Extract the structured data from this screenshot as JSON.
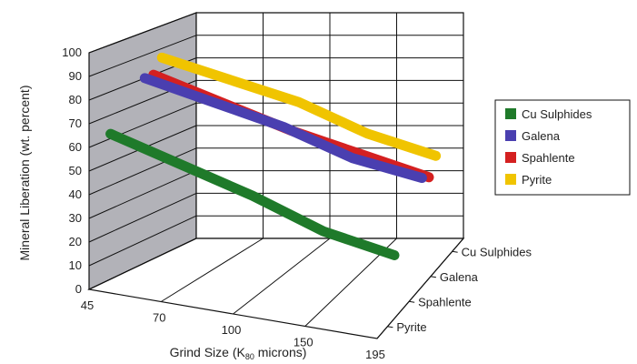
{
  "chart_data": {
    "type": "line",
    "chart_style": "3d-ribbon",
    "title": "",
    "ylabel": "Mineral Liberation (wt. percent)",
    "xlabel": "Grind Size (K80 microns)",
    "xlabel_parts": {
      "main": "Grind Size (K",
      "subscript": "80",
      "suffix": " microns)"
    },
    "categories": [
      "45",
      "70",
      "100",
      "150",
      "195"
    ],
    "ylim": [
      0,
      100
    ],
    "yticks": [
      "0",
      "10",
      "20",
      "30",
      "40",
      "50",
      "60",
      "70",
      "80",
      "90",
      "100"
    ],
    "depth_categories": [
      "Cu Sulphides",
      "Galena",
      "Spahlente",
      "Pyrite"
    ],
    "grid": true,
    "legend_position": "right",
    "series": [
      {
        "name": "Cu Sulphides",
        "color": "#1f7a2a",
        "values": [
          62,
          53,
          44,
          33,
          27
        ]
      },
      {
        "name": "Galena",
        "color": "#4a3fb0",
        "values": [
          80,
          72,
          64,
          53,
          47
        ]
      },
      {
        "name": "Spahlente",
        "color": "#d42020",
        "values": [
          80,
          70,
          60,
          52,
          44
        ]
      },
      {
        "name": "Pyrite",
        "color": "#f0c400",
        "values": [
          86,
          78,
          70,
          58,
          50
        ]
      }
    ]
  }
}
